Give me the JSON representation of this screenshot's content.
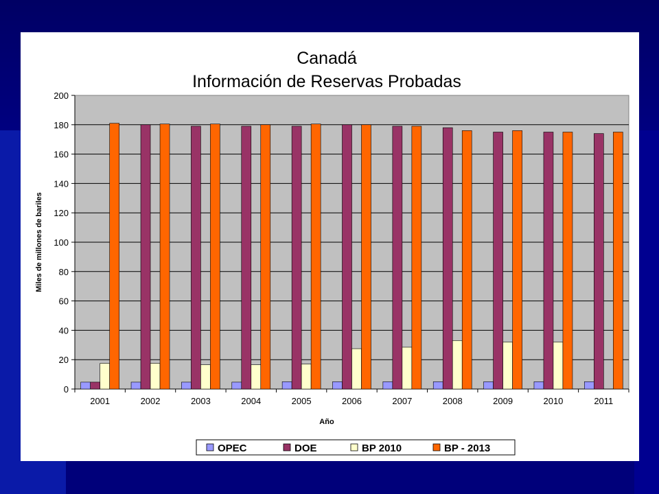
{
  "chart_data": {
    "type": "bar",
    "title": "Canadá",
    "subtitle": "Información de Reservas Probadas",
    "xlabel": "Año",
    "ylabel": "Miles de millones de bariles",
    "ylim": [
      0,
      200
    ],
    "yticks": [
      0,
      20,
      40,
      60,
      80,
      100,
      120,
      140,
      160,
      180,
      200
    ],
    "grid": true,
    "legend_position": "bottom",
    "categories": [
      "2001",
      "2002",
      "2003",
      "2004",
      "2005",
      "2006",
      "2007",
      "2008",
      "2009",
      "2010",
      "2011"
    ],
    "series": [
      {
        "name": "OPEC",
        "color": "#9999ff",
        "values": [
          4.7,
          4.7,
          4.7,
          4.7,
          5.0,
          5.0,
          5.0,
          5.0,
          5.0,
          5.0,
          5.0
        ]
      },
      {
        "name": "DOE",
        "color": "#993366",
        "values": [
          4.7,
          180,
          179,
          179,
          179,
          180,
          179,
          178,
          175,
          175,
          174
        ]
      },
      {
        "name": "BP 2010",
        "color": "#ffffcc",
        "values": [
          17.5,
          17.5,
          16.5,
          16.5,
          17.0,
          27.5,
          28.5,
          33.0,
          32.0,
          32.0,
          null
        ]
      },
      {
        "name": "BP - 2013",
        "color": "#ff6600",
        "values": [
          181,
          180.5,
          180.5,
          180,
          180.5,
          180,
          179,
          176,
          176,
          175,
          175
        ]
      }
    ]
  }
}
